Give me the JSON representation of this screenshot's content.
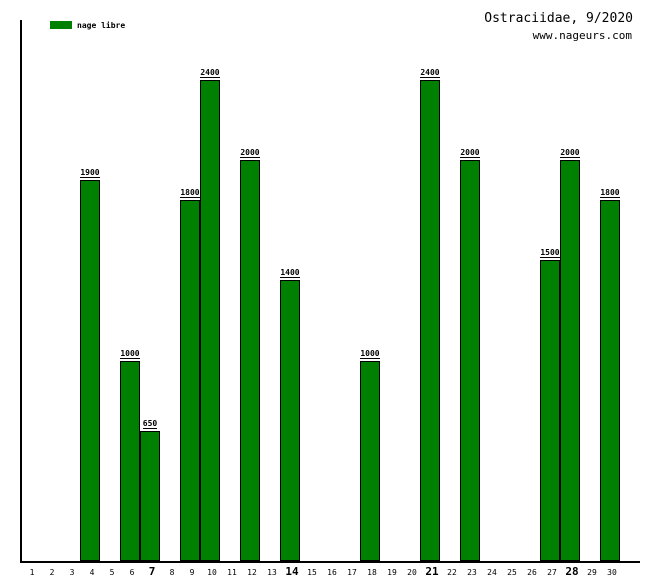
{
  "title": "Ostraciidae, 9/2020",
  "subtitle": "www.nageurs.com",
  "legend": {
    "label": "nage libre",
    "color": "#008000"
  },
  "chart_data": {
    "type": "bar",
    "title": "Ostraciidae, 9/2020",
    "xlabel": "",
    "ylabel": "",
    "categories": [
      "1",
      "2",
      "3",
      "4",
      "5",
      "6",
      "7",
      "8",
      "9",
      "10",
      "11",
      "12",
      "13",
      "14",
      "15",
      "16",
      "17",
      "18",
      "19",
      "20",
      "21",
      "22",
      "23",
      "24",
      "25",
      "26",
      "27",
      "28",
      "29",
      "30"
    ],
    "values": [
      null,
      null,
      null,
      1900,
      null,
      1000,
      650,
      null,
      1800,
      2400,
      null,
      2000,
      null,
      1400,
      null,
      null,
      null,
      1000,
      null,
      null,
      2400,
      null,
      2000,
      null,
      null,
      null,
      1500,
      2000,
      null,
      1800
    ],
    "series": [
      {
        "name": "nage libre",
        "points": [
          {
            "day": 4,
            "value": 1900
          },
          {
            "day": 6,
            "value": 1000
          },
          {
            "day": 7,
            "value": 650
          },
          {
            "day": 9,
            "value": 1800
          },
          {
            "day": 10,
            "value": 2400
          },
          {
            "day": 12,
            "value": 2000
          },
          {
            "day": 14,
            "value": 1400
          },
          {
            "day": 18,
            "value": 1000
          },
          {
            "day": 21,
            "value": 2400
          },
          {
            "day": 23,
            "value": 2000
          },
          {
            "day": 27,
            "value": 1500
          },
          {
            "day": 28,
            "value": 2000
          },
          {
            "day": 30,
            "value": 1800
          }
        ]
      }
    ],
    "bold_days": [
      7,
      14,
      21,
      28
    ],
    "ylim": [
      0,
      2700
    ],
    "grid": false,
    "legend_position": "top-left",
    "bar_color": "#008000",
    "bar_border_color": "#000000"
  }
}
